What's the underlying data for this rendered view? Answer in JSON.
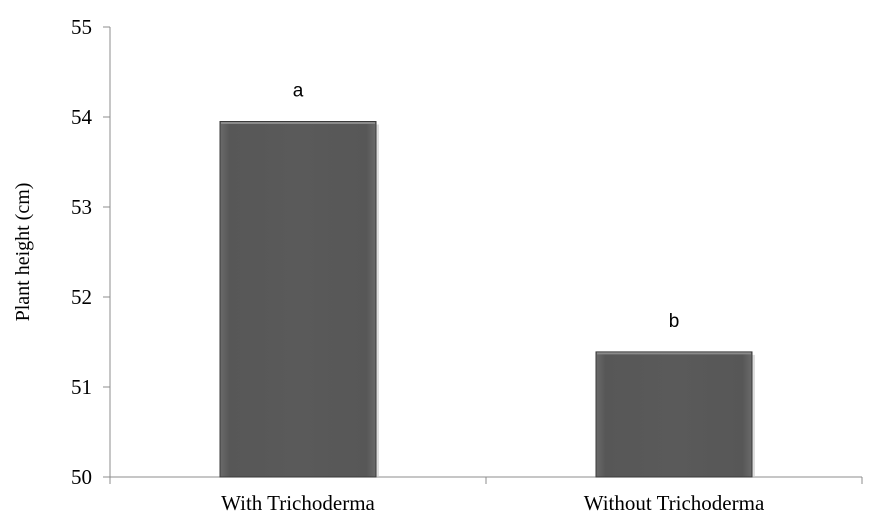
{
  "chart_data": {
    "type": "bar",
    "title": "",
    "xlabel": "",
    "ylabel": "Plant height (cm)",
    "categories": [
      "With Trichoderma",
      "Without Trichoderma"
    ],
    "values": [
      53.95,
      51.39
    ],
    "data_labels": [
      "a",
      "b"
    ],
    "ylim": [
      50,
      55
    ],
    "yticks": [
      50,
      51,
      52,
      53,
      54,
      55
    ],
    "grid": false,
    "legend": "none",
    "bar_color": "#5a5a5a",
    "bar_edge_color": "#3a3a3a",
    "axis_color": "#8c8c8c"
  }
}
